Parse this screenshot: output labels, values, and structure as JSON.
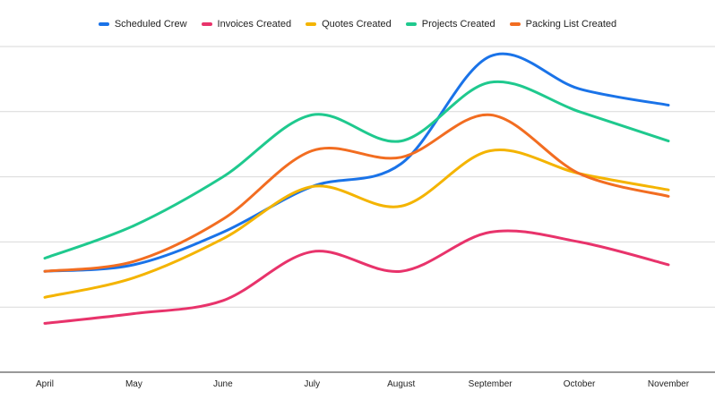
{
  "chart_data": {
    "type": "line",
    "title": "",
    "xlabel": "",
    "ylabel": "",
    "categories": [
      "April",
      "May",
      "June",
      "July",
      "August",
      "September",
      "October",
      "November"
    ],
    "ylim": [
      0,
      100
    ],
    "grid": true,
    "smooth": true,
    "legend_position": "top",
    "series": [
      {
        "name": "Scheduled Crew",
        "color": "#1a73e8",
        "values": [
          31,
          33,
          43,
          57,
          64,
          97,
          87,
          82
        ]
      },
      {
        "name": "Invoices Created",
        "color": "#e8336b",
        "values": [
          15,
          18,
          22,
          37,
          31,
          43,
          40,
          33
        ]
      },
      {
        "name": "Quotes Created",
        "color": "#f4b400",
        "values": [
          23,
          29,
          41,
          57,
          51,
          68,
          61,
          56
        ]
      },
      {
        "name": "Projects Created",
        "color": "#1fc98e",
        "values": [
          35,
          45,
          60,
          79,
          71,
          89,
          80,
          71
        ]
      },
      {
        "name": "Packing List Created",
        "color": "#f26d21",
        "values": [
          31,
          34,
          47,
          68,
          66,
          79,
          61,
          54
        ]
      }
    ]
  }
}
